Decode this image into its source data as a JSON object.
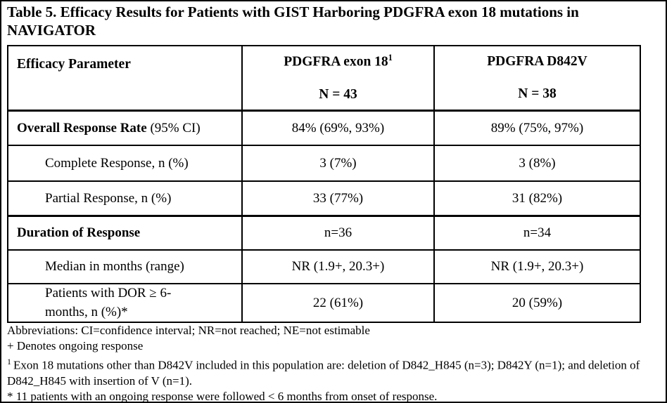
{
  "title": "Table 5. Efficacy Results for Patients with GIST Harboring PDGFRA exon 18 mutations in NAVIGATOR",
  "table": {
    "header": {
      "param": "Efficacy Parameter",
      "col2_line1": "PDGFRA exon 18",
      "col2_sup": "1",
      "col2_line2": "N = 43",
      "col3_line1": "PDGFRA D842V",
      "col3_line2": "N = 38"
    },
    "rows": [
      {
        "label_bold": "Overall Response Rate",
        "label_normal": " (95% CI)",
        "exon18": "84% (69%, 93%)",
        "d842v": "89% (75%, 97%)"
      },
      {
        "label": "Complete Response, n (%)",
        "exon18": "3 (7%)",
        "d842v": "3 (8%)"
      },
      {
        "label": "Partial Response, n (%)",
        "exon18": "33 (77%)",
        "d842v": "31 (82%)"
      },
      {
        "label_bold": "Duration of Response",
        "exon18": "n=36",
        "d842v": "n=34"
      },
      {
        "label": "Median in months (range)",
        "exon18": "NR (1.9+, 20.3+)",
        "d842v": "NR (1.9+, 20.3+)"
      },
      {
        "label": "Patients with DOR ≥ 6-\nmonths, n (%)*",
        "exon18": "22 (61%)",
        "d842v": "20 (59%)"
      }
    ]
  },
  "footnotes": {
    "abbreviations": "Abbreviations: CI=confidence interval; NR=not reached; NE=not estimable",
    "plus_note": "+ Denotes ongoing response",
    "exon18_sup": "1",
    "exon18_note": "Exon 18 mutations other than D842V included in this population are: deletion of D842_H845 (n=3); D842Y (n=1); and deletion of D842_H845 with insertion of V (n=1).",
    "asterisk_note": "* 11 patients with an ongoing response were followed < 6 months from onset of response."
  }
}
